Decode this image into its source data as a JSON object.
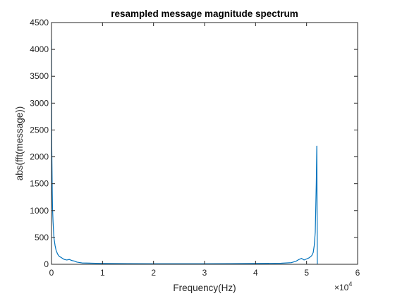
{
  "chart_data": {
    "type": "line",
    "title": "resampled message magnitude spectrum",
    "xlabel": "Frequency(Hz)",
    "ylabel": "abs(fft(message))",
    "x_exponent_label": "×10",
    "x_exponent_power": "4",
    "xlim": [
      0,
      60000
    ],
    "ylim": [
      0,
      4500
    ],
    "xticks": [
      0,
      10000,
      20000,
      30000,
      40000,
      50000,
      60000
    ],
    "xtick_labels": [
      "0",
      "1",
      "2",
      "3",
      "4",
      "5",
      "6"
    ],
    "yticks": [
      0,
      500,
      1000,
      1500,
      2000,
      2500,
      3000,
      3500,
      4000,
      4500
    ],
    "ytick_labels": [
      "0",
      "500",
      "1000",
      "1500",
      "2000",
      "2500",
      "3000",
      "3500",
      "4000",
      "4500"
    ],
    "grid": false,
    "line_color": "#0072BD",
    "series": [
      {
        "x": [
          0,
          50,
          100,
          150,
          200,
          300,
          400,
          500,
          700,
          900,
          1200,
          1500,
          2000,
          2500,
          3000,
          3500,
          4000,
          4500,
          5000,
          6000,
          8000,
          10000,
          15000,
          20000,
          25000,
          30000,
          35000,
          40000,
          45000,
          47000,
          48000,
          48500,
          49000,
          49500,
          50000,
          50500,
          51000,
          51300,
          51500,
          51700,
          51800,
          51900,
          52000,
          52100
        ],
        "y": [
          4180,
          2200,
          1800,
          1350,
          1050,
          800,
          620,
          480,
          350,
          260,
          190,
          150,
          120,
          90,
          80,
          90,
          70,
          60,
          40,
          25,
          20,
          15,
          12,
          10,
          10,
          10,
          12,
          15,
          20,
          30,
          60,
          90,
          110,
          80,
          100,
          120,
          160,
          220,
          350,
          600,
          1050,
          1520,
          2200,
          0
        ]
      }
    ]
  }
}
